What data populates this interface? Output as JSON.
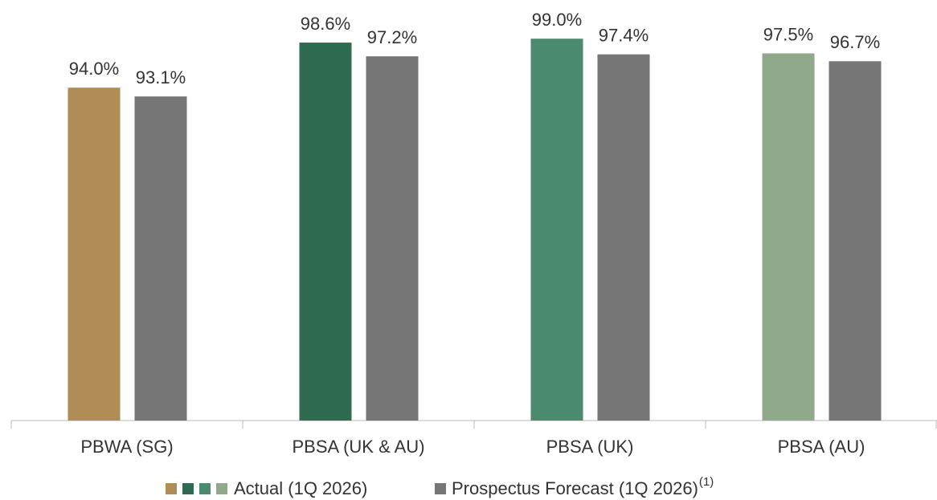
{
  "chart_data": {
    "type": "bar",
    "categories": [
      "PBWA (SG)",
      "PBSA (UK & AU)",
      "PBSA (UK)",
      "PBSA (AU)"
    ],
    "series": [
      {
        "name": "Actual (1Q 2026)",
        "colors": [
          "#b08d57",
          "#2e6b50",
          "#4a8a6e",
          "#8fa98a"
        ],
        "values": [
          94.0,
          98.6,
          99.0,
          97.5
        ],
        "value_labels": [
          "94.0%",
          "98.6%",
          "99.0%",
          "97.5%"
        ]
      },
      {
        "name": "Prospectus Forecast (1Q 2026)",
        "footnote_marker": "(1)",
        "color": "#767676",
        "values": [
          93.1,
          97.2,
          97.4,
          96.7
        ],
        "value_labels": [
          "93.1%",
          "97.2%",
          "97.4%",
          "96.7%"
        ]
      }
    ],
    "ylim": [
      60,
      100
    ]
  }
}
